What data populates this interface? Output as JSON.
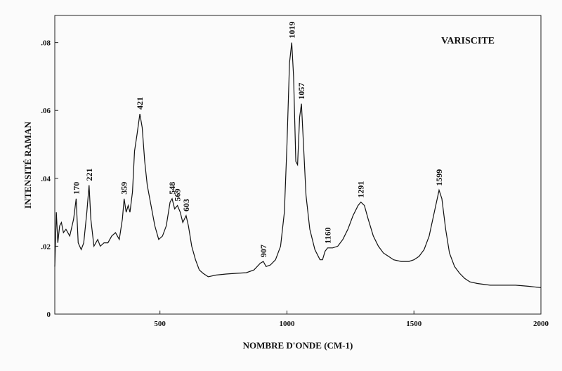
{
  "chart_data": {
    "type": "line",
    "title": "VARISCITE",
    "x_label": "NOMBRE D'ONDE (CM-1)",
    "y_label": "INTENSITÉ RAMAN",
    "x": [
      86,
      92,
      98,
      105,
      112,
      120,
      130,
      145,
      160,
      170,
      178,
      190,
      200,
      212,
      221,
      228,
      240,
      255,
      265,
      280,
      295,
      310,
      325,
      340,
      352,
      359,
      367,
      375,
      382,
      392,
      400,
      410,
      421,
      430,
      440,
      450,
      465,
      480,
      495,
      510,
      525,
      540,
      548,
      558,
      569,
      580,
      590,
      603,
      612,
      625,
      640,
      655,
      670,
      690,
      720,
      760,
      800,
      840,
      870,
      895,
      907,
      918,
      935,
      955,
      975,
      990,
      1000,
      1010,
      1019,
      1026,
      1035,
      1042,
      1050,
      1057,
      1065,
      1075,
      1090,
      1110,
      1130,
      1140,
      1150,
      1160,
      1180,
      1200,
      1220,
      1240,
      1260,
      1280,
      1291,
      1305,
      1320,
      1340,
      1360,
      1380,
      1400,
      1420,
      1450,
      1480,
      1500,
      1520,
      1540,
      1560,
      1580,
      1599,
      1610,
      1625,
      1640,
      1660,
      1680,
      1700,
      1720,
      1750,
      1800,
      1850,
      1900,
      1950,
      2000
    ],
    "series": [
      {
        "name": "VARISCITE",
        "color": "#111111",
        "values": [
          0.014,
          0.03,
          0.021,
          0.026,
          0.027,
          0.024,
          0.025,
          0.023,
          0.028,
          0.034,
          0.021,
          0.019,
          0.021,
          0.03,
          0.038,
          0.028,
          0.02,
          0.022,
          0.02,
          0.021,
          0.021,
          0.023,
          0.024,
          0.022,
          0.028,
          0.034,
          0.03,
          0.032,
          0.03,
          0.036,
          0.048,
          0.053,
          0.059,
          0.055,
          0.045,
          0.038,
          0.032,
          0.026,
          0.022,
          0.023,
          0.026,
          0.033,
          0.034,
          0.031,
          0.032,
          0.03,
          0.027,
          0.029,
          0.026,
          0.02,
          0.016,
          0.013,
          0.012,
          0.011,
          0.0115,
          0.0118,
          0.012,
          0.0122,
          0.013,
          0.015,
          0.0155,
          0.014,
          0.0145,
          0.016,
          0.02,
          0.03,
          0.05,
          0.074,
          0.08,
          0.07,
          0.045,
          0.044,
          0.058,
          0.062,
          0.05,
          0.035,
          0.025,
          0.019,
          0.016,
          0.016,
          0.0185,
          0.0195,
          0.0195,
          0.02,
          0.022,
          0.025,
          0.029,
          0.032,
          0.033,
          0.032,
          0.028,
          0.023,
          0.02,
          0.018,
          0.017,
          0.016,
          0.0155,
          0.0155,
          0.016,
          0.017,
          0.019,
          0.023,
          0.03,
          0.0365,
          0.034,
          0.025,
          0.018,
          0.014,
          0.012,
          0.0105,
          0.0095,
          0.009,
          0.0085,
          0.0085,
          0.0085,
          0.0082,
          0.0078
        ]
      }
    ],
    "peak_labels": [
      170,
      221,
      359,
      421,
      548,
      569,
      603,
      907,
      1019,
      1057,
      1160,
      1291,
      1599
    ],
    "xlim": [
      86,
      2000
    ],
    "ylim": [
      0,
      0.088
    ],
    "xticks": [
      500,
      1000,
      1500,
      2000
    ],
    "yticks": [
      {
        "value": 0,
        "label": "0"
      },
      {
        "value": 0.02,
        "label": ".02"
      },
      {
        "value": 0.04,
        "label": ".04"
      },
      {
        "value": 0.06,
        "label": ".06"
      },
      {
        "value": 0.08,
        "label": ".08"
      }
    ],
    "grid": false
  }
}
